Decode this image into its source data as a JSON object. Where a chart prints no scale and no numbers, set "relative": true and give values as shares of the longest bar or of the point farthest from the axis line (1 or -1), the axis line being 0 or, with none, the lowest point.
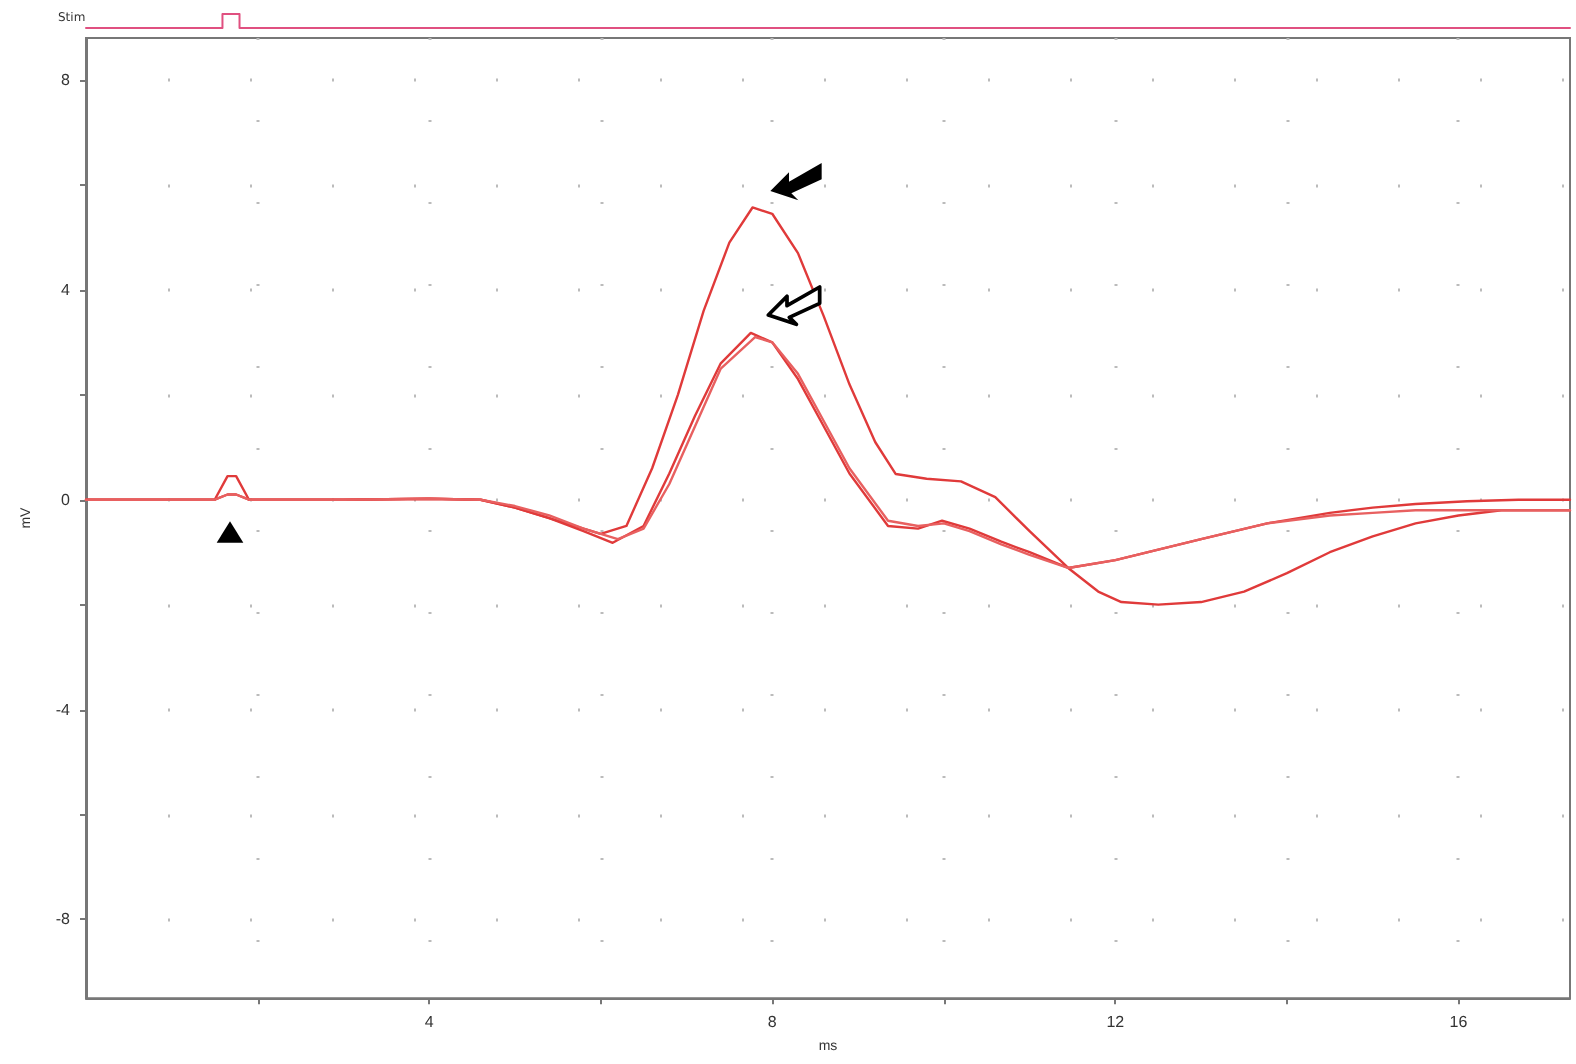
{
  "chart_data": [
    {
      "type": "step",
      "ylabel": "Stim",
      "relative": true,
      "marker": "none",
      "line_style": "solid",
      "categories": [
        null,
        null,
        null,
        null,
        null,
        null,
        null,
        null,
        null,
        null,
        null,
        null,
        null,
        null,
        null,
        null,
        null,
        null,
        null,
        null,
        null,
        null,
        null,
        null,
        null,
        null,
        null,
        null,
        null,
        null,
        null,
        null,
        null,
        null,
        null,
        null,
        null,
        null,
        null,
        null,
        null,
        null,
        null,
        null,
        null,
        null,
        null,
        null,
        null,
        null,
        null,
        null,
        null,
        null,
        null,
        null,
        null,
        null,
        null,
        null,
        null,
        null,
        null,
        null,
        null,
        null,
        null,
        null,
        null,
        null,
        null,
        null,
        null,
        null,
        null,
        null,
        null,
        null,
        null,
        null,
        null,
        null,
        null,
        null,
        null,
        null,
        null,
        null
      ],
      "series": [
        {
          "color": "#e05080",
          "values": [
            0,
            0,
            0,
            0,
            0,
            0,
            0,
            0,
            1,
            0,
            0,
            0,
            0,
            0,
            0,
            0,
            0,
            0,
            0,
            0,
            0,
            0,
            0,
            0,
            0,
            0,
            0,
            0,
            0,
            0,
            0,
            0,
            0,
            0,
            0,
            0,
            0,
            0,
            0,
            0,
            0,
            0,
            0,
            0,
            0,
            0,
            0,
            0,
            0,
            0,
            0,
            0,
            0,
            0,
            0,
            0,
            0,
            0,
            0,
            0,
            0,
            0,
            0,
            0,
            0,
            0,
            0,
            0,
            0,
            0,
            0,
            0,
            0,
            0,
            0,
            0,
            0,
            0,
            0,
            0,
            0,
            0,
            0,
            0,
            0,
            0,
            0,
            0
          ]
        }
      ]
    },
    {
      "type": "line",
      "xlabel": "ms",
      "ylabel": "mV",
      "grid": true,
      "marker": "none",
      "line_style": "solid",
      "xlim": [
        0,
        17.3
      ],
      "ylim": [
        -9.5,
        8.8
      ],
      "xticks": [
        {
          "value": 2,
          "label": null
        },
        4,
        {
          "value": 6,
          "label": null
        },
        8,
        {
          "value": 10,
          "label": null
        },
        12,
        {
          "value": 14,
          "label": null
        },
        16
      ],
      "yticks": [
        -8,
        {
          "value": -6,
          "label": null
        },
        -4,
        {
          "value": -2,
          "label": null
        },
        0,
        {
          "value": 2,
          "label": null
        },
        4,
        {
          "value": 6,
          "label": null
        },
        8
      ],
      "series": [
        {
          "color": "#e03a3a",
          "x": [
            0,
            1.5,
            1.65,
            1.75,
            1.9,
            2.2,
            3,
            4,
            4.6,
            5.0,
            5.4,
            5.8,
            6.0,
            6.3,
            6.6,
            6.9,
            7.2,
            7.5,
            7.77,
            8.0,
            8.3,
            8.6,
            8.9,
            9.2,
            9.44,
            9.8,
            10.2,
            10.6,
            11.0,
            11.45,
            11.8,
            12.07,
            12.5,
            13.0,
            13.5,
            14.0,
            14.5,
            15.0,
            15.5,
            16.0,
            16.5,
            17.0,
            17.3
          ],
          "values": [
            0,
            0,
            0.45,
            0.45,
            0,
            0,
            0,
            0.02,
            0,
            -0.15,
            -0.35,
            -0.55,
            -0.65,
            -0.5,
            0.6,
            2.0,
            3.6,
            4.9,
            5.57,
            5.45,
            4.7,
            3.5,
            2.2,
            1.1,
            0.49,
            0.4,
            0.35,
            0.05,
            -0.6,
            -1.3,
            -1.75,
            -1.95,
            -2.0,
            -1.95,
            -1.75,
            -1.4,
            -1.0,
            -0.7,
            -0.45,
            -0.3,
            -0.2,
            -0.2,
            -0.2
          ]
        },
        {
          "color": "#e03a3a",
          "x": [
            0,
            1.5,
            1.65,
            1.75,
            1.9,
            2.2,
            3,
            4,
            4.6,
            5.0,
            5.4,
            5.8,
            6.14,
            6.5,
            6.8,
            7.1,
            7.4,
            7.75,
            8.0,
            8.3,
            8.6,
            8.9,
            9.35,
            9.7,
            9.98,
            10.3,
            10.67,
            11.0,
            11.45,
            12.0,
            12.5,
            13.0,
            13.77,
            14.5,
            15.0,
            15.5,
            16.1,
            16.7,
            17.3
          ],
          "values": [
            0,
            0,
            0.1,
            0.1,
            0,
            0,
            0,
            0.02,
            0,
            -0.15,
            -0.35,
            -0.6,
            -0.82,
            -0.5,
            0.5,
            1.6,
            2.6,
            3.18,
            3.0,
            2.3,
            1.4,
            0.5,
            -0.5,
            -0.55,
            -0.4,
            -0.55,
            -0.8,
            -1.0,
            -1.3,
            -1.15,
            -0.95,
            -0.75,
            -0.45,
            -0.25,
            -0.15,
            -0.08,
            -0.03,
            0,
            0
          ]
        },
        {
          "color": "#e86060",
          "x": [
            0,
            1.5,
            1.65,
            1.75,
            1.9,
            2.2,
            3,
            4,
            4.6,
            5.0,
            5.4,
            5.8,
            6.2,
            6.5,
            6.8,
            7.1,
            7.4,
            7.8,
            8.0,
            8.3,
            8.6,
            8.9,
            9.35,
            9.7,
            10.0,
            10.3,
            10.67,
            11.0,
            11.45,
            12.0,
            12.5,
            13.0,
            13.77,
            14.5,
            15.0,
            15.5,
            16.1,
            16.7,
            17.3
          ],
          "values": [
            0,
            0,
            0.1,
            0.1,
            0,
            0,
            0,
            0.02,
            0,
            -0.12,
            -0.3,
            -0.55,
            -0.75,
            -0.55,
            0.3,
            1.4,
            2.5,
            3.1,
            3.0,
            2.4,
            1.5,
            0.6,
            -0.4,
            -0.5,
            -0.45,
            -0.6,
            -0.85,
            -1.05,
            -1.3,
            -1.15,
            -0.95,
            -0.75,
            -0.45,
            -0.3,
            -0.25,
            -0.2,
            -0.2,
            -0.2,
            -0.2
          ]
        }
      ]
    }
  ]
}
